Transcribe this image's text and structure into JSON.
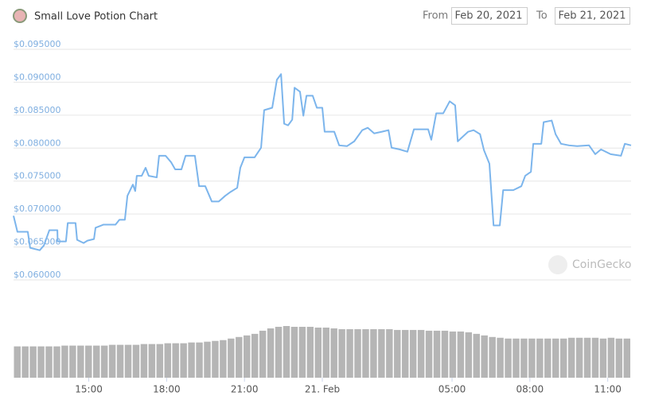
{
  "chart_data": {
    "type": "line",
    "title": "Small Love Potion Chart",
    "from_label": "From",
    "from_date": "Feb 20, 2021",
    "to_label": "To",
    "to_date": "Feb 21, 2021",
    "watermark": "CoinGecko",
    "grid": true,
    "xlim": [
      12.1,
      35.9
    ],
    "xticks": [
      {
        "value": 15,
        "label": "15:00"
      },
      {
        "value": 18,
        "label": "18:00"
      },
      {
        "value": 21,
        "label": "21:00"
      },
      {
        "value": 24,
        "label": "21. Feb"
      },
      {
        "value": 29,
        "label": "05:00"
      },
      {
        "value": 32,
        "label": "08:00"
      },
      {
        "value": 35,
        "label": "11:00"
      }
    ],
    "ylim": [
      0.06,
      0.095
    ],
    "yticks": [
      {
        "value": 0.095,
        "label": "$0.095000"
      },
      {
        "value": 0.09,
        "label": "$0.090000"
      },
      {
        "value": 0.085,
        "label": "$0.085000"
      },
      {
        "value": 0.08,
        "label": "$0.080000"
      },
      {
        "value": 0.075,
        "label": "$0.075000"
      },
      {
        "value": 0.07,
        "label": "$0.070000"
      },
      {
        "value": 0.065,
        "label": "$0.065000"
      },
      {
        "value": 0.06,
        "label": "$0.060000"
      }
    ],
    "series": [
      {
        "color": "#7cb5ec",
        "x": [
          12.1,
          12.25,
          12.65,
          12.74,
          13.11,
          13.27,
          13.48,
          13.79,
          13.8,
          14.12,
          14.19,
          14.49,
          14.55,
          14.8,
          14.95,
          15.2,
          15.26,
          15.57,
          16.03,
          16.18,
          16.39,
          16.49,
          16.7,
          16.79,
          16.85,
          17.04,
          17.19,
          17.31,
          17.62,
          17.71,
          17.96,
          18.17,
          18.33,
          18.57,
          18.73,
          19.09,
          19.25,
          19.49,
          19.74,
          20.01,
          20.26,
          20.47,
          20.72,
          20.84,
          21.0,
          21.39,
          21.64,
          21.76,
          22.07,
          22.25,
          22.41,
          22.53,
          22.68,
          22.84,
          22.93,
          23.14,
          23.27,
          23.39,
          23.63,
          23.79,
          24.0,
          24.09,
          24.46,
          24.65,
          24.95,
          25.23,
          25.54,
          25.75,
          26.0,
          26.3,
          26.55,
          26.67,
          26.98,
          27.28,
          27.53,
          28.08,
          28.2,
          28.39,
          28.66,
          28.91,
          29.12,
          29.22,
          29.62,
          29.83,
          30.08,
          30.23,
          30.44,
          30.6,
          30.84,
          30.97,
          31.36,
          31.67,
          31.82,
          32.04,
          32.13,
          32.44,
          32.53,
          32.84,
          32.99,
          33.2,
          33.51,
          33.82,
          34.28,
          34.52,
          34.74,
          35.11,
          35.51,
          35.66,
          35.9
        ],
        "values": [
          0.06973,
          0.0673,
          0.0673,
          0.06487,
          0.0645,
          0.06523,
          0.06754,
          0.06754,
          0.06584,
          0.06584,
          0.06863,
          0.06863,
          0.06608,
          0.0656,
          0.06596,
          0.0662,
          0.06791,
          0.06839,
          0.06839,
          0.06912,
          0.06912,
          0.07277,
          0.07447,
          0.07349,
          0.0758,
          0.0758,
          0.07702,
          0.0758,
          0.07556,
          0.07884,
          0.07884,
          0.07787,
          0.07677,
          0.07677,
          0.07884,
          0.07884,
          0.07422,
          0.07422,
          0.07191,
          0.07191,
          0.07277,
          0.07337,
          0.07398,
          0.07702,
          0.0786,
          0.0786,
          0.08006,
          0.08577,
          0.08613,
          0.09038,
          0.09123,
          0.0837,
          0.08346,
          0.08431,
          0.08917,
          0.08856,
          0.08492,
          0.08795,
          0.08795,
          0.08613,
          0.08613,
          0.08249,
          0.08249,
          0.08042,
          0.0803,
          0.08103,
          0.08273,
          0.08309,
          0.08224,
          0.08249,
          0.08273,
          0.08006,
          0.07981,
          0.07945,
          0.08285,
          0.08285,
          0.08127,
          0.08528,
          0.08528,
          0.0871,
          0.0865,
          0.08103,
          0.08249,
          0.08273,
          0.08212,
          0.07969,
          0.07763,
          0.06827,
          0.06827,
          0.07362,
          0.07362,
          0.07422,
          0.0758,
          0.07641,
          0.08066,
          0.08066,
          0.08394,
          0.08419,
          0.08212,
          0.08066,
          0.08042,
          0.0803,
          0.08042,
          0.07908,
          0.07981,
          0.07908,
          0.07884,
          0.08066,
          0.08042
        ]
      }
    ],
    "volume": {
      "color": "#b5b5b5",
      "values": [
        40,
        40,
        40,
        40,
        40,
        40,
        41,
        41,
        41,
        41,
        41,
        41,
        42,
        42,
        42,
        42,
        43,
        43,
        43,
        44,
        44,
        44,
        45,
        45,
        46,
        47,
        48,
        50,
        52,
        54,
        56,
        60,
        63,
        65,
        66,
        65,
        65,
        65,
        64,
        64,
        63,
        62,
        62,
        62,
        62,
        62,
        62,
        62,
        61,
        61,
        61,
        61,
        60,
        60,
        60,
        59,
        59,
        58,
        56,
        54,
        52,
        51,
        50,
        50,
        50,
        50,
        50,
        50,
        50,
        50,
        51,
        51,
        51,
        51,
        50,
        51,
        50,
        50
      ]
    }
  }
}
